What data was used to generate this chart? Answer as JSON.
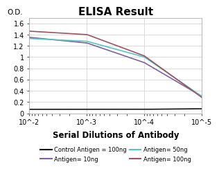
{
  "title": "ELISA Result",
  "ylabel": "O.D.",
  "xlabel": "Serial Dilutions of Antibody",
  "x_values": [
    0.01,
    0.001,
    0.0001,
    1e-05
  ],
  "x_tick_labels": [
    "10^-2",
    "10^-3",
    "10^-4",
    "10^-5"
  ],
  "ylim": [
    0,
    1.7
  ],
  "yticks": [
    0,
    0.2,
    0.4,
    0.6,
    0.8,
    1.0,
    1.2,
    1.4,
    1.6
  ],
  "lines": [
    {
      "label": "Control Antigen = 100ng",
      "color": "#111111",
      "y_values": [
        0.07,
        0.07,
        0.07,
        0.08
      ]
    },
    {
      "label": "Antigen= 10ng",
      "color": "#8060A0",
      "y_values": [
        1.35,
        1.25,
        0.9,
        0.3
      ]
    },
    {
      "label": "Antigen= 50ng",
      "color": "#50C8C0",
      "y_values": [
        1.33,
        1.28,
        1.0,
        0.3
      ]
    },
    {
      "label": "Antigen= 100ng",
      "color": "#A05060",
      "y_values": [
        1.46,
        1.4,
        1.02,
        0.28
      ]
    }
  ],
  "background_color": "#ffffff",
  "grid_color": "#cccccc",
  "title_fontsize": 11,
  "axis_label_fontsize": 7.5,
  "tick_fontsize": 7,
  "legend_fontsize": 6.0
}
